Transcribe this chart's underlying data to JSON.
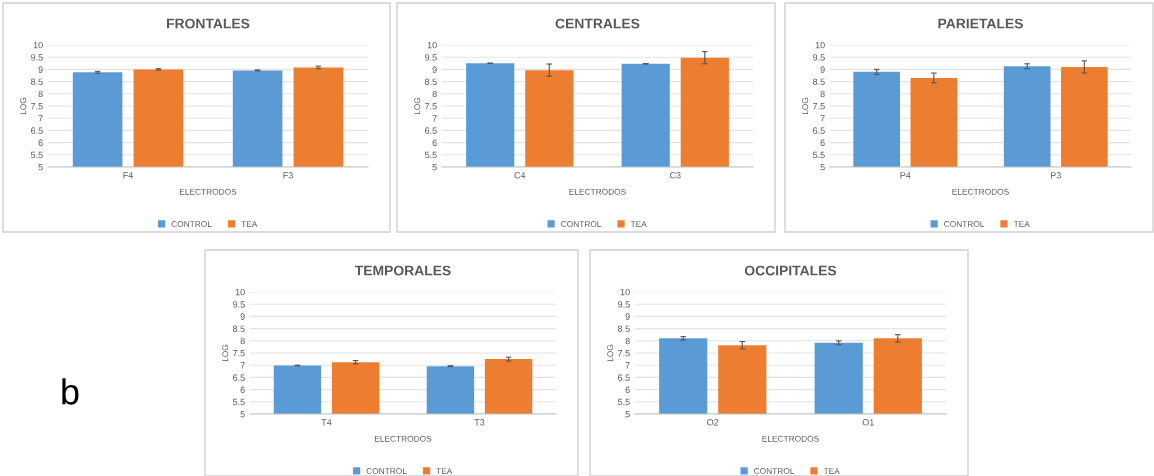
{
  "chart_data": [
    {
      "type": "bar",
      "title": "FRONTALES",
      "xlabel": "ELECTRODOS",
      "ylabel": "LOG",
      "categories": [
        "F4",
        "F3"
      ],
      "ylim": [
        5,
        10
      ],
      "yticks": [
        5,
        5.5,
        6,
        6.5,
        7,
        7.5,
        8,
        8.5,
        9,
        9.5,
        10
      ],
      "grid": "y",
      "legend": "bottom",
      "series": [
        {
          "name": "CONTROL",
          "color": "#5b9bd5",
          "values": [
            8.88,
            8.96
          ],
          "errors": [
            0.04,
            0.02
          ]
        },
        {
          "name": "TEA",
          "color": "#ed7d31",
          "values": [
            9.0,
            9.08
          ],
          "errors": [
            0.03,
            0.05
          ]
        }
      ]
    },
    {
      "type": "bar",
      "title": "CENTRALES",
      "xlabel": "ELECTRODOS",
      "ylabel": "LOG",
      "categories": [
        "C4",
        "C3"
      ],
      "ylim": [
        5,
        10
      ],
      "yticks": [
        5,
        5.5,
        6,
        6.5,
        7,
        7.5,
        8,
        8.5,
        9,
        9.5,
        10
      ],
      "grid": "y",
      "legend": "bottom",
      "series": [
        {
          "name": "CONTROL",
          "color": "#5b9bd5",
          "values": [
            9.25,
            9.23
          ],
          "errors": [
            0.01,
            0.01
          ]
        },
        {
          "name": "TEA",
          "color": "#ed7d31",
          "values": [
            8.97,
            9.48
          ],
          "errors": [
            0.25,
            0.25
          ]
        }
      ]
    },
    {
      "type": "bar",
      "title": "PARIETALES",
      "xlabel": "ELECTRODOS",
      "ylabel": "LOG",
      "categories": [
        "P4",
        "P3"
      ],
      "ylim": [
        5,
        10
      ],
      "yticks": [
        5,
        5.5,
        6,
        6.5,
        7,
        7.5,
        8,
        8.5,
        9,
        9.5,
        10
      ],
      "grid": "y",
      "legend": "bottom",
      "series": [
        {
          "name": "CONTROL",
          "color": "#5b9bd5",
          "values": [
            8.9,
            9.13
          ],
          "errors": [
            0.1,
            0.1
          ]
        },
        {
          "name": "TEA",
          "color": "#ed7d31",
          "values": [
            8.65,
            9.1
          ],
          "errors": [
            0.2,
            0.25
          ]
        }
      ]
    },
    {
      "type": "bar",
      "title": "TEMPORALES",
      "xlabel": "ELECTRODOS",
      "ylabel": "LOG",
      "categories": [
        "T4",
        "T3"
      ],
      "ylim": [
        5,
        10
      ],
      "yticks": [
        5,
        5.5,
        6,
        6.5,
        7,
        7.5,
        8,
        8.5,
        9,
        9.5,
        10
      ],
      "grid": "y",
      "legend": "bottom",
      "annotations": [
        "b"
      ],
      "series": [
        {
          "name": "CONTROL",
          "color": "#5b9bd5",
          "values": [
            6.99,
            6.96
          ],
          "errors": [
            0.01,
            0.02
          ]
        },
        {
          "name": "TEA",
          "color": "#ed7d31",
          "values": [
            7.12,
            7.25
          ],
          "errors": [
            0.07,
            0.08
          ]
        }
      ]
    },
    {
      "type": "bar",
      "title": "OCCIPITALES",
      "xlabel": "ELECTRODOS",
      "ylabel": "LOG",
      "categories": [
        "O2",
        "O1"
      ],
      "ylim": [
        5,
        10
      ],
      "yticks": [
        5,
        5.5,
        6,
        6.5,
        7,
        7.5,
        8,
        8.5,
        9,
        9.5,
        10
      ],
      "grid": "y",
      "legend": "bottom",
      "series": [
        {
          "name": "CONTROL",
          "color": "#5b9bd5",
          "values": [
            8.1,
            7.92
          ],
          "errors": [
            0.07,
            0.08
          ]
        },
        {
          "name": "TEA",
          "color": "#ed7d31",
          "values": [
            7.82,
            8.1
          ],
          "errors": [
            0.15,
            0.15
          ]
        }
      ]
    }
  ]
}
